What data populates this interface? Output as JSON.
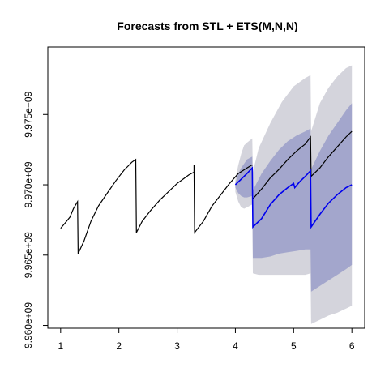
{
  "chart_data": {
    "type": "line",
    "title": "Forecasts from STL +  ETS(M,N,N)",
    "xlabel": "",
    "ylabel": "",
    "xlim": [
      0.78,
      6.22
    ],
    "ylim": [
      9959800000.0,
      9979800000.0
    ],
    "x_ticks": [
      1,
      2,
      3,
      4,
      5,
      6
    ],
    "x_tick_labels": [
      "1",
      "2",
      "3",
      "4",
      "5",
      "6"
    ],
    "y_ticks": [
      9960000000.0,
      9965000000.0,
      9970000000.0,
      9975000000.0
    ],
    "y_tick_labels": [
      "9.960e+09",
      "9.965e+09",
      "9.970e+09",
      "9.975e+09"
    ],
    "grid": false,
    "colors": {
      "history": "#000000",
      "forecast": "#0000ee",
      "band80": "#a3a6cc",
      "band95": "#d4d4dc"
    },
    "history": [
      [
        1.0,
        9966900000.0
      ],
      [
        1.08,
        9967300000.0
      ],
      [
        1.16,
        9967700000.0
      ],
      [
        1.22,
        9968300000.0
      ],
      [
        1.29,
        9968800000.0
      ],
      [
        1.3,
        9965100000.0
      ],
      [
        1.4,
        9966000000.0
      ],
      [
        1.52,
        9967400000.0
      ],
      [
        1.65,
        9968500000.0
      ],
      [
        1.8,
        9969400000.0
      ],
      [
        1.95,
        9970300000.0
      ],
      [
        2.1,
        9971100000.0
      ],
      [
        2.15,
        9971300000.0
      ],
      [
        2.22,
        9971600000.0
      ],
      [
        2.29,
        9971800000.0
      ],
      [
        2.3,
        9966600000.0
      ],
      [
        2.4,
        9967400000.0
      ],
      [
        2.55,
        9968200000.0
      ],
      [
        2.7,
        9968900000.0
      ],
      [
        2.85,
        9969500000.0
      ],
      [
        3.0,
        9970100000.0
      ],
      [
        3.1,
        9970400000.0
      ],
      [
        3.2,
        9970700000.0
      ],
      [
        3.29,
        9970900000.0
      ],
      [
        3.29,
        9971400000.0
      ],
      [
        3.3,
        9966600000.0
      ],
      [
        3.45,
        9967400000.0
      ],
      [
        3.6,
        9968500000.0
      ],
      [
        3.75,
        9969300000.0
      ],
      [
        3.9,
        9970100000.0
      ],
      [
        4.05,
        9970800000.0
      ],
      [
        4.2,
        9971200000.0
      ],
      [
        4.28,
        9971400000.0
      ],
      [
        4.3,
        9971400000.0
      ]
    ],
    "actual_future": [
      [
        4.3,
        9969000000.0
      ],
      [
        4.45,
        9969700000.0
      ],
      [
        4.6,
        9970500000.0
      ],
      [
        4.75,
        9971100000.0
      ],
      [
        4.9,
        9971800000.0
      ],
      [
        5.05,
        9972400000.0
      ],
      [
        5.2,
        9972900000.0
      ],
      [
        5.29,
        9973400000.0
      ],
      [
        5.3,
        9970600000.0
      ],
      [
        5.45,
        9971200000.0
      ],
      [
        5.6,
        9972000000.0
      ],
      [
        5.75,
        9972700000.0
      ],
      [
        5.9,
        9973400000.0
      ],
      [
        6.0,
        9973800000.0
      ]
    ],
    "forecast": [
      [
        4.0,
        9970000000.0
      ],
      [
        4.1,
        9970400000.0
      ],
      [
        4.2,
        9970800000.0
      ],
      [
        4.29,
        9971200000.0
      ],
      [
        4.3,
        9967000000.0
      ],
      [
        4.45,
        9967600000.0
      ],
      [
        4.6,
        9968600000.0
      ],
      [
        4.75,
        9969300000.0
      ],
      [
        4.9,
        9969800000.0
      ],
      [
        5.0,
        9970100000.0
      ],
      [
        5.02,
        9969800000.0
      ],
      [
        5.1,
        9970200000.0
      ],
      [
        5.2,
        9970600000.0
      ],
      [
        5.29,
        9971000000.0
      ],
      [
        5.3,
        9967000000.0
      ],
      [
        5.45,
        9967900000.0
      ],
      [
        5.6,
        9968700000.0
      ],
      [
        5.75,
        9969300000.0
      ],
      [
        5.9,
        9969800000.0
      ],
      [
        6.0,
        9970000000.0
      ]
    ],
    "band95": [
      [
        4.0,
        9969500000.0,
        9970400000.0
      ],
      [
        4.05,
        9968800000.0,
        9971400000.0
      ],
      [
        4.1,
        9968400000.0,
        9972200000.0
      ],
      [
        4.15,
        9968300000.0,
        9972800000.0
      ],
      [
        4.2,
        9968400000.0,
        9973000000.0
      ],
      [
        4.29,
        9968600000.0,
        9973300000.0
      ],
      [
        4.3,
        9963700000.0,
        9970900000.0
      ],
      [
        4.4,
        9963600000.0,
        9972600000.0
      ],
      [
        4.6,
        9963600000.0,
        9974400000.0
      ],
      [
        4.8,
        9963600000.0,
        9975900000.0
      ],
      [
        5.0,
        9963600000.0,
        9977000000.0
      ],
      [
        5.2,
        9963600000.0,
        9977600000.0
      ],
      [
        5.29,
        9963700000.0,
        9977800000.0
      ],
      [
        5.3,
        9960100000.0,
        9973800000.0
      ],
      [
        5.45,
        9960400000.0,
        9975800000.0
      ],
      [
        5.6,
        9960700000.0,
        9976900000.0
      ],
      [
        5.75,
        9960900000.0,
        9977700000.0
      ],
      [
        5.9,
        9961200000.0,
        9978300000.0
      ],
      [
        6.0,
        9961400000.0,
        9978500000.0
      ]
    ],
    "band80": [
      [
        4.0,
        9969800000.0,
        9970100000.0
      ],
      [
        4.05,
        9969400000.0,
        9970800000.0
      ],
      [
        4.1,
        9969200000.0,
        9971200000.0
      ],
      [
        4.15,
        9969100000.0,
        9971500000.0
      ],
      [
        4.2,
        9969100000.0,
        9971800000.0
      ],
      [
        4.29,
        9969200000.0,
        9972000000.0
      ],
      [
        4.3,
        9964800000.0,
        9969600000.0
      ],
      [
        4.45,
        9964800000.0,
        9970800000.0
      ],
      [
        4.6,
        9964900000.0,
        9971700000.0
      ],
      [
        4.75,
        9965100000.0,
        9972500000.0
      ],
      [
        4.9,
        9965200000.0,
        9973100000.0
      ],
      [
        5.05,
        9965300000.0,
        9973500000.0
      ],
      [
        5.2,
        9965400000.0,
        9973800000.0
      ],
      [
        5.29,
        9965400000.0,
        9974000000.0
      ],
      [
        5.3,
        9962400000.0,
        9971100000.0
      ],
      [
        5.45,
        9962800000.0,
        9972400000.0
      ],
      [
        5.6,
        9963200000.0,
        9973500000.0
      ],
      [
        5.75,
        9963600000.0,
        9974400000.0
      ],
      [
        5.9,
        9964000000.0,
        9975300000.0
      ],
      [
        6.0,
        9964300000.0,
        9975800000.0
      ]
    ]
  }
}
